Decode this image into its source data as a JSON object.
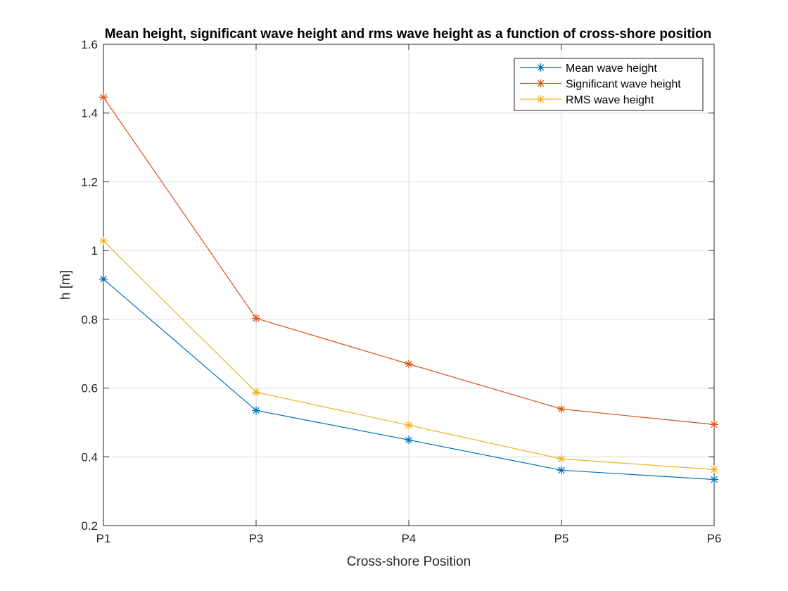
{
  "chart_data": {
    "type": "line",
    "title": "Mean height, significant wave height and rms wave height as a function of cross-shore position",
    "xlabel": "Cross-shore Position",
    "ylabel": "h [m]",
    "categories": [
      "P1",
      "P3",
      "P4",
      "P5",
      "P6"
    ],
    "ylim": [
      0.2,
      1.6
    ],
    "yticks": [
      "0.2",
      "0.4",
      "0.6",
      "0.8",
      "1",
      "1.2",
      "1.4",
      "1.6"
    ],
    "grid": true,
    "legend_position": "top-right",
    "marker": "asterisk",
    "series": [
      {
        "name": "Mean wave height",
        "color": "#0072BD",
        "values": [
          0.917,
          0.535,
          0.449,
          0.361,
          0.334
        ]
      },
      {
        "name": "Significant wave height",
        "color": "#D95319",
        "values": [
          1.446,
          0.803,
          0.67,
          0.539,
          0.494
        ]
      },
      {
        "name": "RMS wave height",
        "color": "#EDB120",
        "values": [
          1.028,
          0.588,
          0.492,
          0.394,
          0.363
        ]
      }
    ]
  }
}
